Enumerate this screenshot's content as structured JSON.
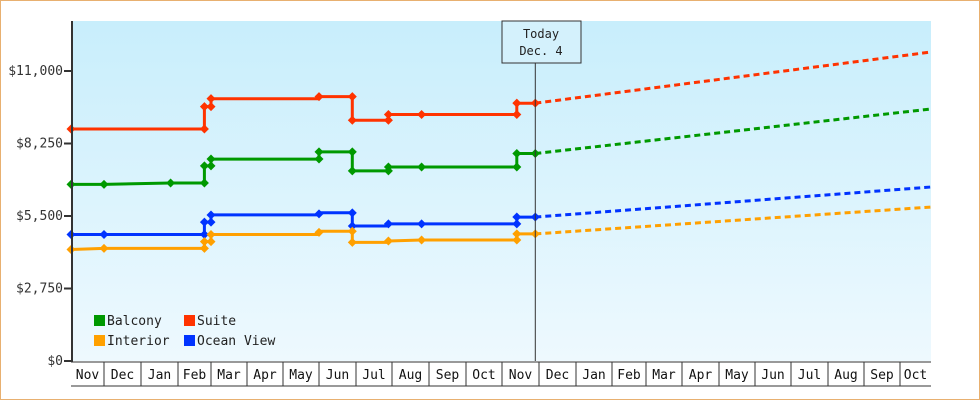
{
  "chart_data": {
    "type": "line",
    "title": "",
    "xlabel": "",
    "ylabel": "",
    "ylim": [
      0,
      12000
    ],
    "yticks": [
      {
        "value": 0,
        "label": "$0"
      },
      {
        "value": 2750,
        "label": "$2,750"
      },
      {
        "value": 5500,
        "label": "$5,500"
      },
      {
        "value": 8250,
        "label": "$8,250"
      },
      {
        "value": 11000,
        "label": "$11,000"
      }
    ],
    "x_months": [
      "Nov",
      "Dec",
      "Jan",
      "Feb",
      "Mar",
      "Apr",
      "May",
      "Jun",
      "Jul",
      "Aug",
      "Sep",
      "Oct",
      "Nov",
      "Dec",
      "Jan",
      "Feb",
      "Mar",
      "Apr",
      "May",
      "Jun",
      "Jul",
      "Aug",
      "Sep",
      "Oct"
    ],
    "today_marker": {
      "line1": "Today",
      "line2": "Dec. 4",
      "month_index": 12.9
    },
    "grid": false,
    "legend_position": "lower-left",
    "series": [
      {
        "name": "Suite",
        "color": "#ff3300",
        "points": [
          [
            0.0,
            8800
          ],
          [
            3.8,
            8800
          ],
          [
            3.8,
            9650
          ],
          [
            4.0,
            9650
          ],
          [
            4.0,
            9950
          ],
          [
            7.0,
            9950
          ],
          [
            7.0,
            10030
          ],
          [
            7.9,
            10030
          ],
          [
            7.9,
            9130
          ],
          [
            8.9,
            9130
          ],
          [
            8.9,
            9350
          ],
          [
            9.8,
            9350
          ],
          [
            12.4,
            9350
          ],
          [
            12.4,
            9780
          ],
          [
            12.9,
            9780
          ]
        ],
        "projection": [
          [
            12.9,
            9780
          ],
          [
            24.0,
            11720
          ]
        ]
      },
      {
        "name": "Balcony",
        "color": "#009900",
        "points": [
          [
            0.0,
            6700
          ],
          [
            1.0,
            6700
          ],
          [
            2.8,
            6750
          ],
          [
            3.8,
            6750
          ],
          [
            3.8,
            7400
          ],
          [
            4.0,
            7400
          ],
          [
            4.0,
            7660
          ],
          [
            7.0,
            7660
          ],
          [
            7.0,
            7930
          ],
          [
            7.9,
            7930
          ],
          [
            7.9,
            7210
          ],
          [
            8.9,
            7210
          ],
          [
            8.9,
            7360
          ],
          [
            9.8,
            7360
          ],
          [
            12.4,
            7360
          ],
          [
            12.4,
            7870
          ],
          [
            12.9,
            7870
          ]
        ],
        "projection": [
          [
            12.9,
            7870
          ],
          [
            24.0,
            9560
          ]
        ]
      },
      {
        "name": "Ocean View",
        "color": "#0033ff",
        "points": [
          [
            0.0,
            4800
          ],
          [
            1.0,
            4800
          ],
          [
            3.8,
            4800
          ],
          [
            3.8,
            5270
          ],
          [
            4.0,
            5270
          ],
          [
            4.0,
            5540
          ],
          [
            7.0,
            5540
          ],
          [
            7.0,
            5620
          ],
          [
            7.9,
            5620
          ],
          [
            7.9,
            5120
          ],
          [
            8.9,
            5120
          ],
          [
            8.9,
            5200
          ],
          [
            9.8,
            5200
          ],
          [
            12.4,
            5200
          ],
          [
            12.4,
            5460
          ],
          [
            12.9,
            5460
          ]
        ],
        "projection": [
          [
            12.9,
            5460
          ],
          [
            24.0,
            6600
          ]
        ]
      },
      {
        "name": "Interior",
        "color": "#ffa000",
        "points": [
          [
            0.0,
            4230
          ],
          [
            1.0,
            4270
          ],
          [
            3.8,
            4270
          ],
          [
            3.8,
            4530
          ],
          [
            4.0,
            4530
          ],
          [
            4.0,
            4800
          ],
          [
            7.0,
            4800
          ],
          [
            7.0,
            4920
          ],
          [
            7.9,
            4920
          ],
          [
            7.9,
            4500
          ],
          [
            8.9,
            4500
          ],
          [
            8.9,
            4550
          ],
          [
            9.8,
            4590
          ],
          [
            12.4,
            4590
          ],
          [
            12.4,
            4820
          ],
          [
            12.9,
            4820
          ]
        ],
        "projection": [
          [
            12.9,
            4820
          ],
          [
            24.0,
            5840
          ]
        ]
      }
    ],
    "markers": {
      "Suite": [
        [
          0,
          8800
        ],
        [
          3.8,
          8800
        ],
        [
          3.8,
          9650
        ],
        [
          4.0,
          9650
        ],
        [
          4.0,
          9950
        ],
        [
          7.0,
          10030
        ],
        [
          7.9,
          10030
        ],
        [
          7.9,
          9130
        ],
        [
          8.9,
          9130
        ],
        [
          8.9,
          9350
        ],
        [
          9.8,
          9350
        ],
        [
          12.4,
          9350
        ],
        [
          12.4,
          9780
        ],
        [
          12.9,
          9780
        ]
      ],
      "Balcony": [
        [
          0,
          6700
        ],
        [
          1.0,
          6700
        ],
        [
          2.8,
          6750
        ],
        [
          3.8,
          6750
        ],
        [
          3.8,
          7400
        ],
        [
          4.0,
          7400
        ],
        [
          4.0,
          7660
        ],
        [
          7.0,
          7660
        ],
        [
          7.0,
          7930
        ],
        [
          7.9,
          7930
        ],
        [
          7.9,
          7210
        ],
        [
          8.9,
          7210
        ],
        [
          8.9,
          7360
        ],
        [
          9.8,
          7360
        ],
        [
          12.4,
          7360
        ],
        [
          12.4,
          7870
        ],
        [
          12.9,
          7870
        ]
      ],
      "Ocean View": [
        [
          0,
          4800
        ],
        [
          1.0,
          4800
        ],
        [
          3.8,
          4800
        ],
        [
          3.8,
          5270
        ],
        [
          4.0,
          5270
        ],
        [
          4.0,
          5540
        ],
        [
          7.0,
          5580
        ],
        [
          7.9,
          5620
        ],
        [
          7.9,
          5120
        ],
        [
          8.9,
          5200
        ],
        [
          9.8,
          5200
        ],
        [
          12.4,
          5200
        ],
        [
          12.4,
          5460
        ],
        [
          12.9,
          5460
        ]
      ],
      "Interior": [
        [
          0,
          4230
        ],
        [
          1.0,
          4270
        ],
        [
          3.8,
          4270
        ],
        [
          3.8,
          4530
        ],
        [
          4.0,
          4530
        ],
        [
          4.0,
          4800
        ],
        [
          7.0,
          4880
        ],
        [
          7.9,
          4920
        ],
        [
          7.9,
          4500
        ],
        [
          8.9,
          4550
        ],
        [
          9.8,
          4590
        ],
        [
          12.4,
          4590
        ],
        [
          12.4,
          4820
        ],
        [
          12.9,
          4820
        ]
      ]
    },
    "legend": [
      {
        "name": "Balcony",
        "color": "#009900",
        "col": 0,
        "row": 0
      },
      {
        "name": "Suite",
        "color": "#ff3300",
        "col": 1,
        "row": 0
      },
      {
        "name": "Interior",
        "color": "#ffa000",
        "col": 0,
        "row": 1
      },
      {
        "name": "Ocean View",
        "color": "#0033ff",
        "col": 1,
        "row": 1
      }
    ]
  },
  "colors": {
    "border": "#e8b070",
    "plot_bg_top": "#c8eefc",
    "plot_bg_bottom": "#eef9fe",
    "axis": "#333333"
  }
}
